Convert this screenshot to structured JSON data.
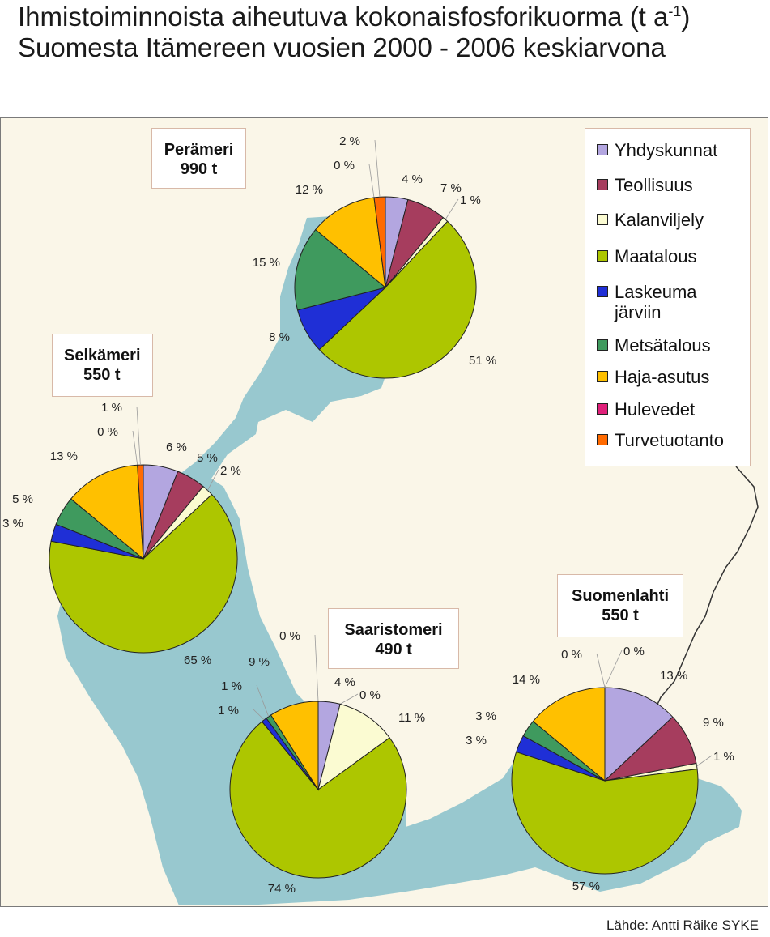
{
  "title": {
    "line1_pre": "Ihmistoiminnoista aiheutuva kokonaisfosforikuorma (t a",
    "line1_sup": "-1",
    "line1_post": ")",
    "line2": "Suomesta Itämereen vuosien 2000 - 2006 keskiarvona"
  },
  "source": "Lähde: Antti Räike SYKE",
  "legend": [
    {
      "label": "Yhdyskunnat",
      "color": "#b3a6e0"
    },
    {
      "label": "Teollisuus",
      "color": "#a63d5e"
    },
    {
      "label": "Kalanviljely",
      "color": "#fbfbd2"
    },
    {
      "label": "Maatalous",
      "color": "#adc600"
    },
    {
      "label": "Laskeuma järviin",
      "color": "#1f2fd6"
    },
    {
      "label": "Metsätalous",
      "color": "#3f9a5e"
    },
    {
      "label": "Haja-asutus",
      "color": "#ffc000"
    },
    {
      "label": "Hulevedet",
      "color": "#e0207a"
    },
    {
      "label": "Turvetuotanto",
      "color": "#ff6a00"
    }
  ],
  "colors": {
    "sea": "#98c8cf",
    "background": "#faf6e8",
    "leader_line": "#999999"
  },
  "chart_data": [
    {
      "type": "pie",
      "title": "Perämeri",
      "total_label": "990 t",
      "categories": [
        "Yhdyskunnat",
        "Teollisuus",
        "Kalanviljely",
        "Maatalous",
        "Laskeuma järviin",
        "Metsätalous",
        "Haja-asutus",
        "Hulevedet",
        "Turvetuotanto"
      ],
      "values": [
        4,
        7,
        1,
        51,
        8,
        15,
        12,
        0,
        2
      ],
      "labels": [
        "4 %",
        "7 %",
        "1 %",
        "51 %",
        "8 %",
        "15 %",
        "12 %",
        "0 %",
        "2 %"
      ]
    },
    {
      "type": "pie",
      "title": "Selkämeri",
      "total_label": "550 t",
      "categories": [
        "Yhdyskunnat",
        "Teollisuus",
        "Kalanviljely",
        "Maatalous",
        "Laskeuma järviin",
        "Metsätalous",
        "Haja-asutus",
        "Hulevedet",
        "Turvetuotanto"
      ],
      "values": [
        6,
        5,
        2,
        65,
        3,
        5,
        13,
        0,
        1
      ],
      "labels": [
        "6 %",
        "5 %",
        "2 %",
        "65 %",
        "3 %",
        "5 %",
        "13 %",
        "0 %",
        "1 %"
      ]
    },
    {
      "type": "pie",
      "title": "Saaristomeri",
      "total_label": "490 t",
      "categories": [
        "Yhdyskunnat",
        "Teollisuus",
        "Kalanviljely",
        "Maatalous",
        "Laskeuma järviin",
        "Metsätalous",
        "Haja-asutus",
        "Hulevedet",
        "Turvetuotanto"
      ],
      "values": [
        4,
        0,
        11,
        74,
        1,
        1,
        9,
        0,
        0
      ],
      "labels": [
        "4 %",
        "0 %",
        "11 %",
        "74 %",
        "1 %",
        "1 %",
        "9 %",
        "",
        "0 %"
      ]
    },
    {
      "type": "pie",
      "title": "Suomenlahti",
      "total_label": "550 t",
      "categories": [
        "Yhdyskunnat",
        "Teollisuus",
        "Kalanviljely",
        "Maatalous",
        "Laskeuma järviin",
        "Metsätalous",
        "Haja-asutus",
        "Hulevedet",
        "Turvetuotanto"
      ],
      "values": [
        13,
        9,
        1,
        57,
        3,
        3,
        14,
        0,
        0
      ],
      "labels": [
        "13 %",
        "9 %",
        "1 %",
        "57 %",
        "3 %",
        "3 %",
        "14 %",
        "0 %",
        "0 %"
      ]
    }
  ]
}
